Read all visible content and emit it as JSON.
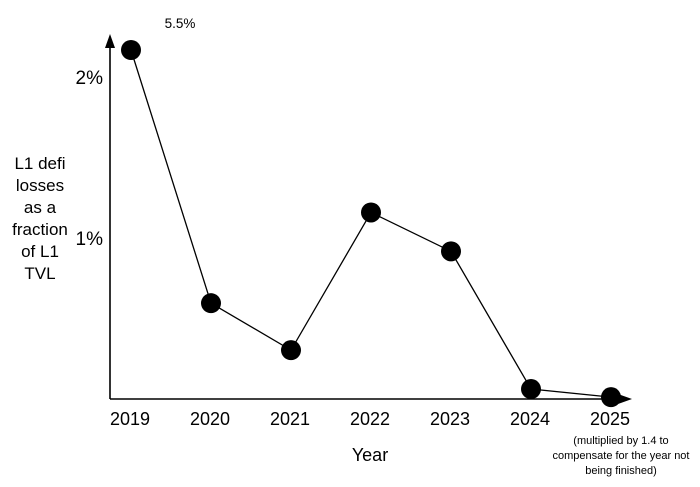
{
  "chart": {
    "y_axis": {
      "title_lines": "L1 defi\nlosses\nas a\nfraction\nof L1\nTVL"
    },
    "x_axis": {
      "footnote": "(multiplied by 1.4 to\ncompensate for the year not\nbeing finished)"
    }
  },
  "chart_data": {
    "type": "line",
    "title": "",
    "xlabel": "Year",
    "ylabel": "L1 defi losses as a fraction of L1 TVL",
    "x": [
      "2019",
      "2020",
      "2021",
      "2022",
      "2023",
      "2024",
      "2025"
    ],
    "series": [
      {
        "name": "L1 defi losses as a fraction of L1 TVL",
        "values": [
          5.5,
          0.61,
          0.32,
          1.17,
          0.93,
          0.08,
          0.03
        ]
      }
    ],
    "unit": "%",
    "ylim": [
      0,
      2.26
    ],
    "ytick_values": [
      1,
      2
    ],
    "ytick_labels": [
      "1%",
      "2%"
    ],
    "grid": false,
    "legend": "none",
    "marker": "filled-circle",
    "line_color": "#000000",
    "background": "#ffffff",
    "annotations": [
      {
        "x": "2019",
        "text": "5.5%",
        "note": "value off-scale, point clipped at top of y-axis"
      }
    ],
    "x_footnote": "(multiplied by 1.4 to compensate for the year not being finished)"
  }
}
